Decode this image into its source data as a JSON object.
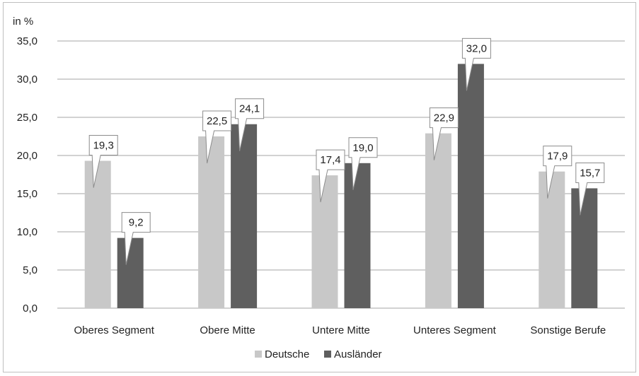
{
  "chart_data": {
    "type": "bar",
    "unit_label": "in %",
    "categories": [
      "Oberes Segment",
      "Obere Mitte",
      "Untere Mitte",
      "Unteres Segment",
      "Sonstige Berufe"
    ],
    "series": [
      {
        "name": "Deutsche",
        "values": [
          19.3,
          22.5,
          17.4,
          22.9,
          17.9
        ],
        "labels": [
          "19,3",
          "22,5",
          "17,4",
          "22,9",
          "17,9"
        ],
        "color": "#c8c8c8"
      },
      {
        "name": "Ausländer",
        "values": [
          9.2,
          24.1,
          19.0,
          32.0,
          15.7
        ],
        "labels": [
          "9,2",
          "24,1",
          "19,0",
          "32,0",
          "15,7"
        ],
        "color": "#5f5f5f"
      }
    ],
    "ylim": [
      0,
      35
    ],
    "yticks": [
      0,
      5,
      10,
      15,
      20,
      25,
      30,
      35
    ],
    "ytick_labels": [
      "0,0",
      "5,0",
      "10,0",
      "15,0",
      "20,0",
      "25,0",
      "30,0",
      "35,0"
    ],
    "grid": true,
    "legend_position": "bottom",
    "colors": {
      "gridline": "#a6a6a6",
      "callout_border": "#8c8c8c"
    }
  }
}
